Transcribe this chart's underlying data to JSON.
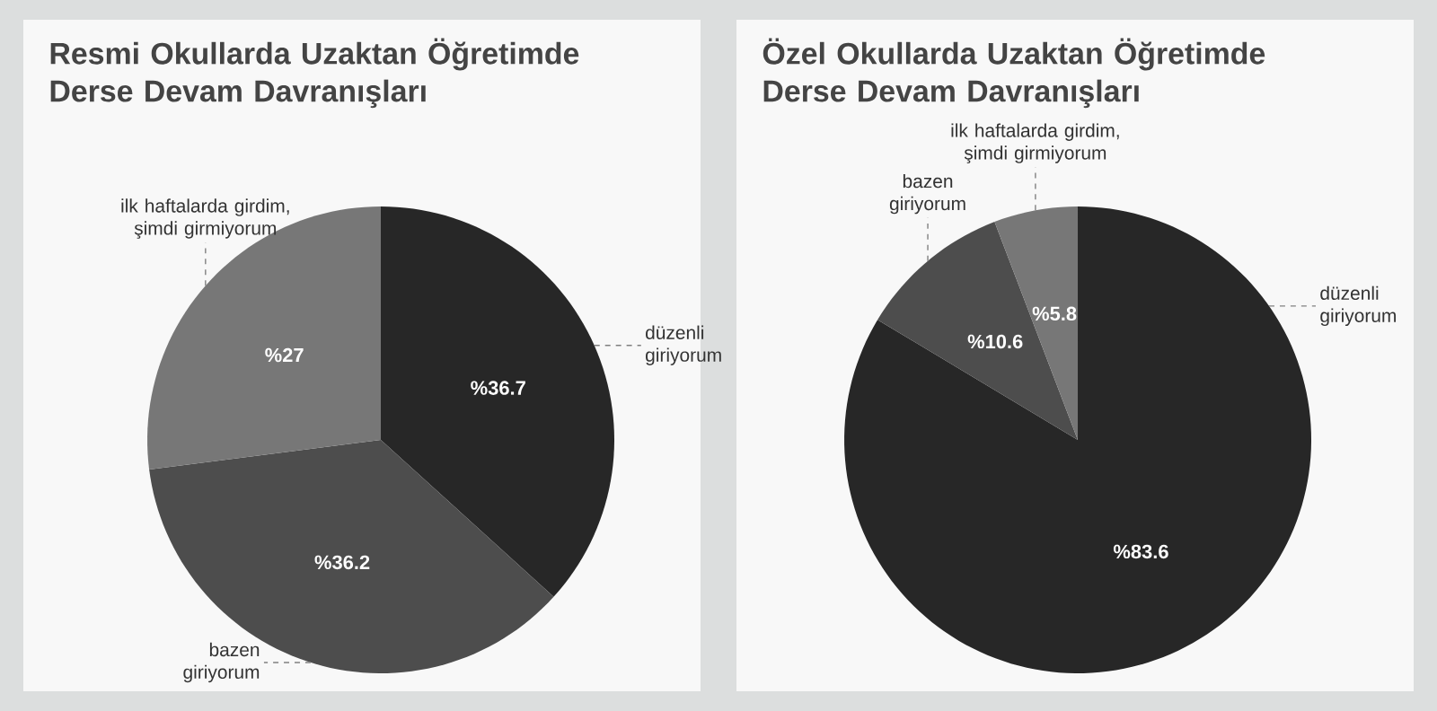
{
  "chart_data": [
    {
      "type": "pie",
      "title": "Resmi Okullarda Uzaktan Öğretimde Derse Devam Davranışları",
      "categories": [
        "düzenli giriyorum",
        "bazen giriyorum",
        "ilk haftalarda girdim, şimdi girmiyorum"
      ],
      "values": [
        36.7,
        36.2,
        27
      ],
      "colors": [
        "#272727",
        "#4d4d4d",
        "#777777"
      ],
      "value_labels": [
        "%36.7",
        "%36.2",
        "%27"
      ]
    },
    {
      "type": "pie",
      "title": "Özel Okullarda Uzaktan Öğretimde Derse Devam Davranışları",
      "categories": [
        "düzenli giriyorum",
        "bazen giriyorum",
        "ilk haftalarda girdim, şimdi girmiyorum"
      ],
      "values": [
        83.6,
        10.6,
        5.8
      ],
      "colors": [
        "#272727",
        "#4d4d4d",
        "#777777"
      ],
      "value_labels": [
        "%83.6",
        "%10.6",
        "%5.8"
      ]
    }
  ]
}
